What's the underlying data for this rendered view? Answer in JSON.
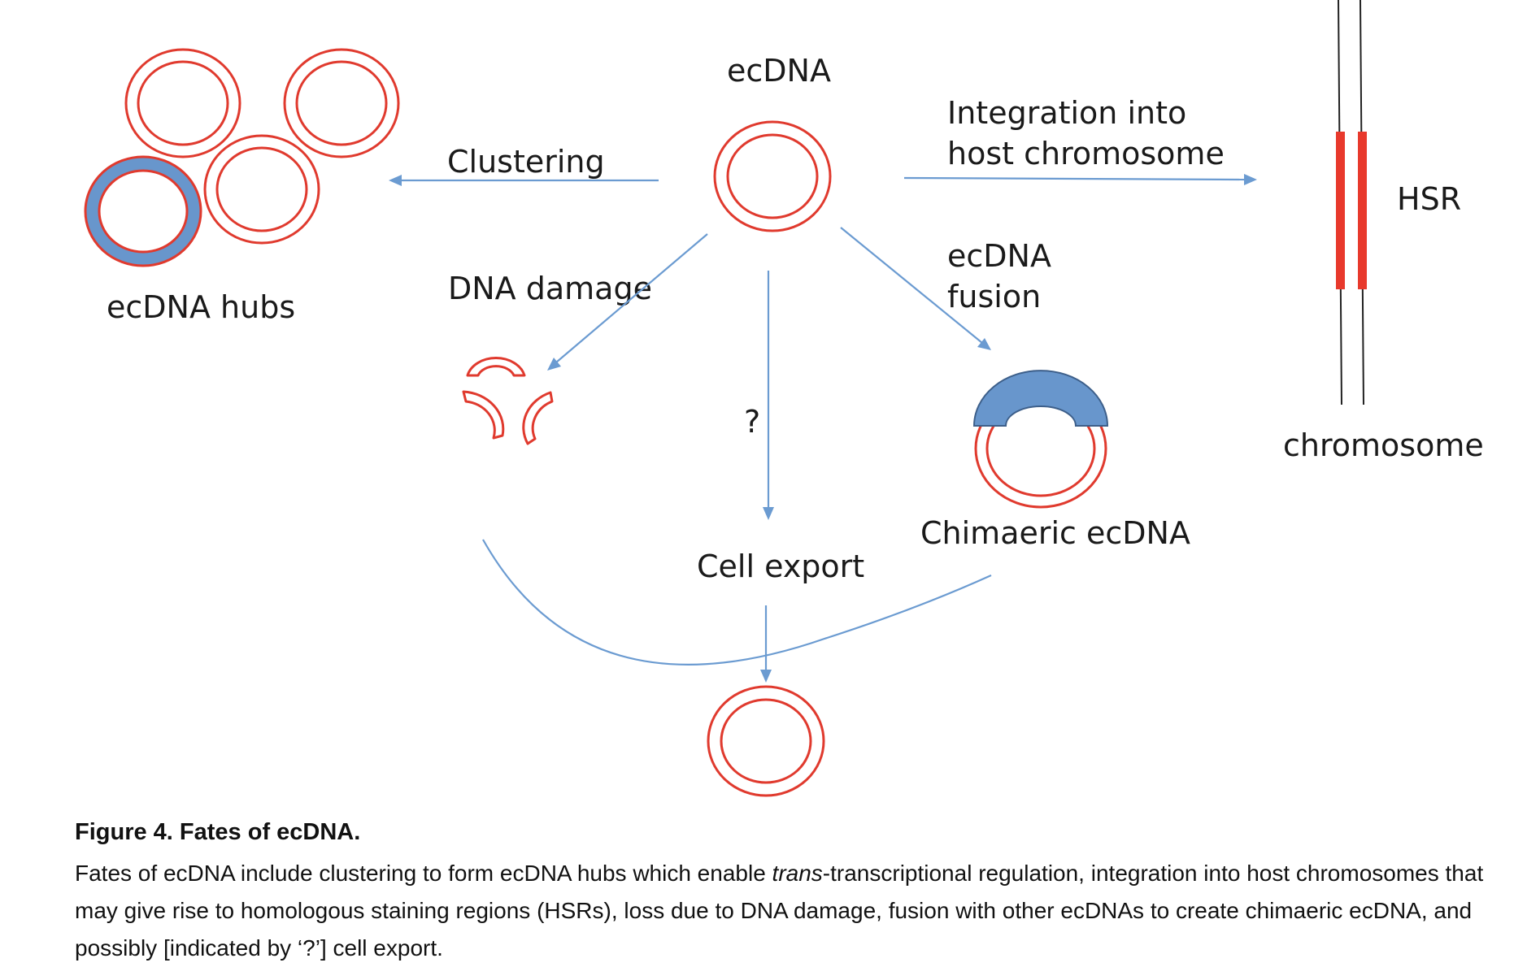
{
  "diagram": {
    "labels": {
      "ecdna": "ecDNA",
      "clustering": "Clustering",
      "integration_line1": "Integration into",
      "integration_line2": "host chromosome",
      "hsr": "HSR",
      "ecdna_hubs": "ecDNA hubs",
      "dna_damage": "DNA damage",
      "ecdna_fusion_line1": "ecDNA",
      "ecdna_fusion_line2": "fusion",
      "question": "?",
      "chromosome": "chromosome",
      "chimaeric": "Chimaeric ecDNA",
      "cell_export": "Cell export"
    },
    "colors": {
      "dna_ring": "#e03a2e",
      "arrow": "#6b9bd1",
      "fused_segment": "#6896cc",
      "hsr_band": "#e8392c",
      "chromosome_line": "#222222"
    }
  },
  "caption": {
    "title": "Figure 4. Fates of ecDNA.",
    "body_before_italic": "Fates of ecDNA include clustering to form ecDNA hubs which enable ",
    "body_italic": "trans",
    "body_after_italic": "-transcriptional regulation, integration into host chromosomes that may give rise to homologous staining regions (HSRs), loss due to DNA damage, fusion with other ecDNAs to create chimaeric ecDNA, and possibly [indicated by ‘?’] cell export."
  }
}
